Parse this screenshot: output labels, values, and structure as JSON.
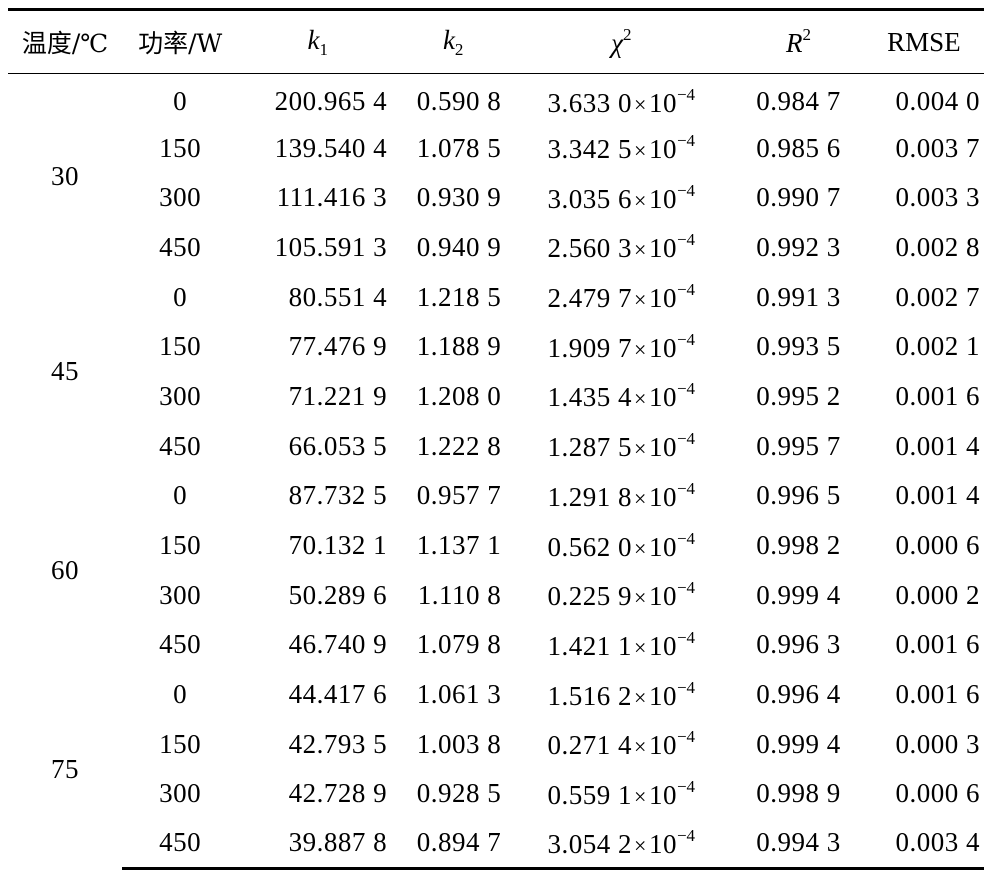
{
  "header": {
    "temp": "温度/℃",
    "power": "功率/W",
    "k1": {
      "base": "k",
      "sub": "1"
    },
    "k2": {
      "base": "k",
      "sub": "2"
    },
    "chi": {
      "base": "χ",
      "sup": "2"
    },
    "r2": {
      "base": "R",
      "sup": "2"
    },
    "rmse": "RMSE"
  },
  "chi_unit": {
    "times": "×",
    "base": "10",
    "exp": "−4"
  },
  "groups": [
    {
      "temp": "30",
      "rows": [
        {
          "power": "0",
          "k1": "200.965 4",
          "k2": "0.590 8",
          "chi": "3.633 0",
          "r2": "0.984 7",
          "rmse": "0.004 0"
        },
        {
          "power": "150",
          "k1": "139.540 4",
          "k2": "1.078 5",
          "chi": "3.342 5",
          "r2": "0.985 6",
          "rmse": "0.003 7"
        },
        {
          "power": "300",
          "k1": "111.416 3",
          "k2": "0.930 9",
          "chi": "3.035 6",
          "r2": "0.990 7",
          "rmse": "0.003 3"
        },
        {
          "power": "450",
          "k1": "105.591 3",
          "k2": "0.940 9",
          "chi": "2.560 3",
          "r2": "0.992 3",
          "rmse": "0.002 8"
        }
      ]
    },
    {
      "temp": "45",
      "rows": [
        {
          "power": "0",
          "k1": "80.551 4",
          "k2": "1.218 5",
          "chi": "2.479 7",
          "r2": "0.991 3",
          "rmse": "0.002 7"
        },
        {
          "power": "150",
          "k1": "77.476 9",
          "k2": "1.188 9",
          "chi": "1.909 7",
          "r2": "0.993 5",
          "rmse": "0.002 1"
        },
        {
          "power": "300",
          "k1": "71.221 9",
          "k2": "1.208 0",
          "chi": "1.435 4",
          "r2": "0.995 2",
          "rmse": "0.001 6"
        },
        {
          "power": "450",
          "k1": "66.053 5",
          "k2": "1.222 8",
          "chi": "1.287 5",
          "r2": "0.995 7",
          "rmse": "0.001 4"
        }
      ]
    },
    {
      "temp": "60",
      "rows": [
        {
          "power": "0",
          "k1": "87.732 5",
          "k2": "0.957 7",
          "chi": "1.291 8",
          "r2": "0.996 5",
          "rmse": "0.001 4"
        },
        {
          "power": "150",
          "k1": "70.132 1",
          "k2": "1.137 1",
          "chi": "0.562 0",
          "r2": "0.998 2",
          "rmse": "0.000 6"
        },
        {
          "power": "300",
          "k1": "50.289 6",
          "k2": "1.110 8",
          "chi": "0.225 9",
          "r2": "0.999 4",
          "rmse": "0.000 2"
        },
        {
          "power": "450",
          "k1": "46.740 9",
          "k2": "1.079 8",
          "chi": "1.421 1",
          "r2": "0.996 3",
          "rmse": "0.001 6"
        }
      ]
    },
    {
      "temp": "75",
      "rows": [
        {
          "power": "0",
          "k1": "44.417 6",
          "k2": "1.061 3",
          "chi": "1.516 2",
          "r2": "0.996 4",
          "rmse": "0.001 6"
        },
        {
          "power": "150",
          "k1": "42.793 5",
          "k2": "1.003 8",
          "chi": "0.271 4",
          "r2": "0.999 4",
          "rmse": "0.000 3"
        },
        {
          "power": "300",
          "k1": "42.728 9",
          "k2": "0.928 5",
          "chi": "0.559 1",
          "r2": "0.998 9",
          "rmse": "0.000 6"
        },
        {
          "power": "450",
          "k1": "39.887 8",
          "k2": "0.894 7",
          "chi": "3.054 2",
          "r2": "0.994 3",
          "rmse": "0.003 4"
        }
      ]
    }
  ]
}
